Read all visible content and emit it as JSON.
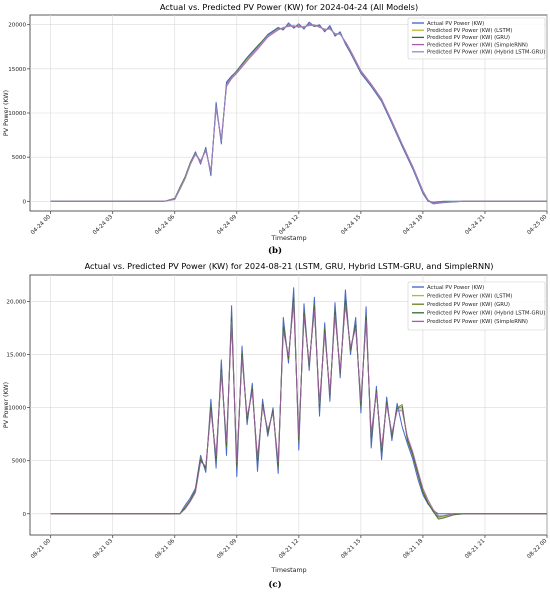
{
  "chart_data": [
    {
      "type": "line",
      "title": "Actual vs. Predicted PV Power (KW) for 2024-04-24 (All Models)",
      "xlabel": "Timestamp",
      "ylabel": "PV Power (KW)",
      "caption": "(b)",
      "grid": true,
      "legend_position": "top-right",
      "xlim_hours": [
        -1,
        24
      ],
      "ylim": [
        -1100,
        21100
      ],
      "x_ticks": [
        {
          "hour": 0,
          "label": "04-24 00"
        },
        {
          "hour": 3,
          "label": "04-24 03"
        },
        {
          "hour": 6,
          "label": "04-24 06"
        },
        {
          "hour": 9,
          "label": "04-24 09"
        },
        {
          "hour": 12,
          "label": "04-24 12"
        },
        {
          "hour": 15,
          "label": "04-24 15"
        },
        {
          "hour": 18,
          "label": "04-24 18"
        },
        {
          "hour": 21,
          "label": "04-24 21"
        },
        {
          "hour": 24,
          "label": "04-25 00"
        }
      ],
      "y_ticks": [
        {
          "value": 0,
          "label": "0"
        },
        {
          "value": 5000,
          "label": "5000"
        },
        {
          "value": 10000,
          "label": "10000"
        },
        {
          "value": 15000,
          "label": "15000"
        },
        {
          "value": 20000,
          "label": "20000"
        }
      ],
      "x": [
        0,
        5.5,
        6.0,
        6.25,
        6.5,
        6.75,
        7.0,
        7.25,
        7.5,
        7.75,
        8.0,
        8.25,
        8.5,
        8.75,
        9.0,
        9.5,
        10.0,
        10.5,
        11.0,
        11.25,
        11.5,
        11.75,
        12.0,
        12.25,
        12.5,
        12.75,
        13.0,
        13.25,
        13.5,
        13.75,
        14.0,
        14.25,
        14.5,
        15.0,
        15.5,
        16.0,
        16.5,
        17.0,
        17.5,
        17.75,
        18.0,
        18.25,
        18.5,
        19.0,
        20.0,
        24.0
      ],
      "series": [
        {
          "name": "Actual PV Power (KW)",
          "color": "#4060c8",
          "values": [
            0,
            0,
            300,
            1500,
            2700,
            4300,
            5600,
            4200,
            6100,
            2900,
            11200,
            6500,
            13500,
            14200,
            14700,
            16200,
            17500,
            18900,
            19700,
            19400,
            20200,
            19600,
            20100,
            19500,
            20300,
            19800,
            20000,
            19200,
            19900,
            18700,
            19200,
            17800,
            16800,
            14500,
            13000,
            11300,
            8800,
            6200,
            3700,
            2300,
            900,
            0,
            -100,
            0,
            0,
            0
          ]
        },
        {
          "name": "Predicted PV Power (KW) (LSTM)",
          "color": "#b5ba2c",
          "values": [
            0,
            0,
            250,
            1300,
            2500,
            4100,
            5400,
            4500,
            5800,
            3300,
            10700,
            6900,
            13100,
            14000,
            14600,
            16000,
            17300,
            18700,
            19500,
            19600,
            19900,
            19800,
            19800,
            19700,
            20000,
            19900,
            19800,
            19400,
            19600,
            18900,
            19000,
            18000,
            17000,
            14700,
            13200,
            11500,
            9000,
            6400,
            3900,
            2500,
            1100,
            100,
            -250,
            -100,
            0,
            0
          ]
        },
        {
          "name": "Predicted PV Power (KW) (GRU)",
          "color": "#2f6a36",
          "values": [
            0,
            0,
            350,
            1600,
            2800,
            4400,
            5500,
            4400,
            6000,
            3100,
            10900,
            6700,
            13300,
            14100,
            14800,
            16300,
            17600,
            18800,
            19600,
            19500,
            20000,
            19700,
            19900,
            19600,
            20100,
            19800,
            19900,
            19300,
            19700,
            18800,
            19100,
            17900,
            16900,
            14600,
            13100,
            11400,
            8900,
            6300,
            3800,
            2400,
            1000,
            50,
            -300,
            -150,
            0,
            0
          ]
        },
        {
          "name": "Predicted PV Power (KW) (SimpleRNN)",
          "color": "#a65bb0",
          "values": [
            0,
            0,
            200,
            1400,
            2600,
            4200,
            5300,
            4600,
            5700,
            3400,
            10500,
            7100,
            13000,
            13900,
            14500,
            15900,
            17200,
            18600,
            19400,
            19700,
            19800,
            19900,
            19700,
            19800,
            19900,
            20000,
            19700,
            19500,
            19500,
            19000,
            18900,
            18100,
            17100,
            14800,
            13300,
            11600,
            9100,
            6500,
            4000,
            2600,
            1200,
            150,
            -200,
            -50,
            0,
            0
          ]
        },
        {
          "name": "Predicted PV Power (KW) (Hybrid LSTM-GRU)",
          "color": "#9a86cf",
          "values": [
            0,
            0,
            280,
            1450,
            2650,
            4250,
            5450,
            4350,
            5900,
            3200,
            10800,
            6800,
            13200,
            14050,
            14650,
            16100,
            17400,
            18750,
            19550,
            19550,
            19950,
            19750,
            19850,
            19650,
            20050,
            19850,
            19850,
            19350,
            19650,
            18850,
            19050,
            17950,
            16950,
            14650,
            13150,
            11450,
            8950,
            6350,
            3850,
            2450,
            1050,
            80,
            -280,
            -120,
            0,
            0
          ]
        }
      ]
    },
    {
      "type": "line",
      "title": "Actual vs. Predicted PV Power (KW) for 2024-08-21 (LSTM, GRU, Hybrid LSTM-GRU, and SimpleRNN)",
      "xlabel": "Timestamp",
      "ylabel": "PV Power (KW)",
      "caption": "(c)",
      "grid": true,
      "legend_position": "top-right",
      "xlim_hours": [
        -1,
        24
      ],
      "ylim": [
        -2000,
        22500
      ],
      "x_ticks": [
        {
          "hour": 0,
          "label": "08-21 00"
        },
        {
          "hour": 3,
          "label": "08-21 03"
        },
        {
          "hour": 6,
          "label": "08-21 06"
        },
        {
          "hour": 9,
          "label": "08-21 09"
        },
        {
          "hour": 12,
          "label": "08-21 12"
        },
        {
          "hour": 15,
          "label": "08-21 15"
        },
        {
          "hour": 18,
          "label": "08-21 18"
        },
        {
          "hour": 21,
          "label": "08-21 21"
        },
        {
          "hour": 24,
          "label": "08-22 00"
        }
      ],
      "y_ticks": [
        {
          "value": 0,
          "label": "0"
        },
        {
          "value": 5000,
          "label": "5000"
        },
        {
          "value": 10000,
          "label": "10000"
        },
        {
          "value": 15000,
          "label": "15,000"
        },
        {
          "value": 20000,
          "label": "20,000"
        }
      ],
      "x": [
        0,
        6.25,
        6.5,
        6.75,
        7.0,
        7.25,
        7.5,
        7.75,
        8.0,
        8.25,
        8.5,
        8.75,
        9.0,
        9.25,
        9.5,
        9.75,
        10.0,
        10.25,
        10.5,
        10.75,
        11.0,
        11.25,
        11.5,
        11.75,
        12.0,
        12.25,
        12.5,
        12.75,
        13.0,
        13.25,
        13.5,
        13.75,
        14.0,
        14.25,
        14.5,
        14.75,
        15.0,
        15.25,
        15.5,
        15.75,
        16.0,
        16.25,
        16.5,
        16.75,
        17.0,
        17.25,
        17.5,
        17.75,
        18.0,
        18.25,
        18.5,
        18.75,
        19.0,
        19.5,
        20.0,
        24.0
      ],
      "series": [
        {
          "name": "Actual PV Power (KW)",
          "color": "#4060c8",
          "values": [
            0,
            0,
            800,
            1500,
            2400,
            5500,
            3900,
            10800,
            4300,
            14500,
            5500,
            19600,
            3500,
            15800,
            8400,
            12300,
            4000,
            10800,
            7300,
            10000,
            3800,
            18500,
            14200,
            21300,
            6000,
            19800,
            13500,
            20400,
            9200,
            18000,
            10600,
            19900,
            12800,
            21100,
            15000,
            18500,
            9500,
            19500,
            6200,
            12000,
            5100,
            11000,
            6900,
            10400,
            8200,
            6600,
            5200,
            3300,
            1800,
            900,
            300,
            0,
            0,
            0,
            0,
            0
          ]
        },
        {
          "name": "Predicted PV Power (KW) (LSTM)",
          "color": "#b5ba2c",
          "values": [
            0,
            0,
            500,
            1200,
            2100,
            5000,
            4400,
            9900,
            5300,
            13500,
            6600,
            18300,
            4700,
            14900,
            9000,
            11600,
            5100,
            10200,
            7800,
            9600,
            4700,
            17400,
            14800,
            20100,
            7100,
            18800,
            14100,
            19400,
            10200,
            17200,
            11300,
            18900,
            13400,
            19900,
            15600,
            17700,
            10400,
            18400,
            7300,
            11500,
            6000,
            10400,
            7500,
            9800,
            9900,
            7100,
            5600,
            3900,
            2200,
            1100,
            300,
            -400,
            -300,
            -100,
            0,
            0
          ]
        },
        {
          "name": "Predicted PV Power (KW) (GRU)",
          "color": "#6b7d1f",
          "values": [
            0,
            0,
            600,
            1300,
            2200,
            5200,
            4200,
            10200,
            5000,
            13800,
            6300,
            18700,
            4400,
            15200,
            8800,
            11800,
            4800,
            10400,
            7600,
            9800,
            4400,
            17800,
            14600,
            20500,
            6800,
            19100,
            13900,
            19700,
            9900,
            17500,
            11100,
            19200,
            13200,
            20300,
            15400,
            17900,
            10100,
            18700,
            7000,
            11700,
            5700,
            10600,
            7300,
            10000,
            10300,
            6900,
            5500,
            3700,
            2000,
            1000,
            200,
            -300,
            -200,
            0,
            0,
            0
          ]
        },
        {
          "name": "Predicted PV Power (KW) (Hybrid LSTM-GRU)",
          "color": "#2f6a36",
          "values": [
            0,
            0,
            550,
            1250,
            2150,
            5100,
            4300,
            10000,
            5200,
            13600,
            6500,
            18500,
            4600,
            15000,
            8900,
            11700,
            5000,
            10300,
            7700,
            9700,
            4600,
            17600,
            14700,
            20300,
            7000,
            18900,
            14000,
            19500,
            10100,
            17300,
            11200,
            19000,
            13300,
            20100,
            15500,
            17800,
            10300,
            18500,
            7200,
            11600,
            5900,
            10500,
            7400,
            9900,
            10100,
            7000,
            5700,
            3800,
            2100,
            1000,
            200,
            -500,
            -400,
            -100,
            0,
            0
          ]
        },
        {
          "name": "Predicted PV Power (KW) (SimpleRNN)",
          "color": "#a65bb0",
          "values": [
            0,
            0,
            450,
            1150,
            2000,
            4900,
            4500,
            9700,
            5500,
            13300,
            6800,
            18100,
            4900,
            14700,
            9200,
            11500,
            5300,
            10100,
            7900,
            9500,
            4900,
            17200,
            14900,
            19900,
            7300,
            18600,
            14200,
            19200,
            10400,
            17000,
            11400,
            18700,
            13500,
            19700,
            15700,
            17500,
            10600,
            18200,
            7500,
            11400,
            6200,
            10300,
            7600,
            9700,
            9700,
            7300,
            5900,
            4100,
            2400,
            1300,
            400,
            -200,
            -200,
            0,
            0,
            0
          ]
        }
      ]
    }
  ]
}
